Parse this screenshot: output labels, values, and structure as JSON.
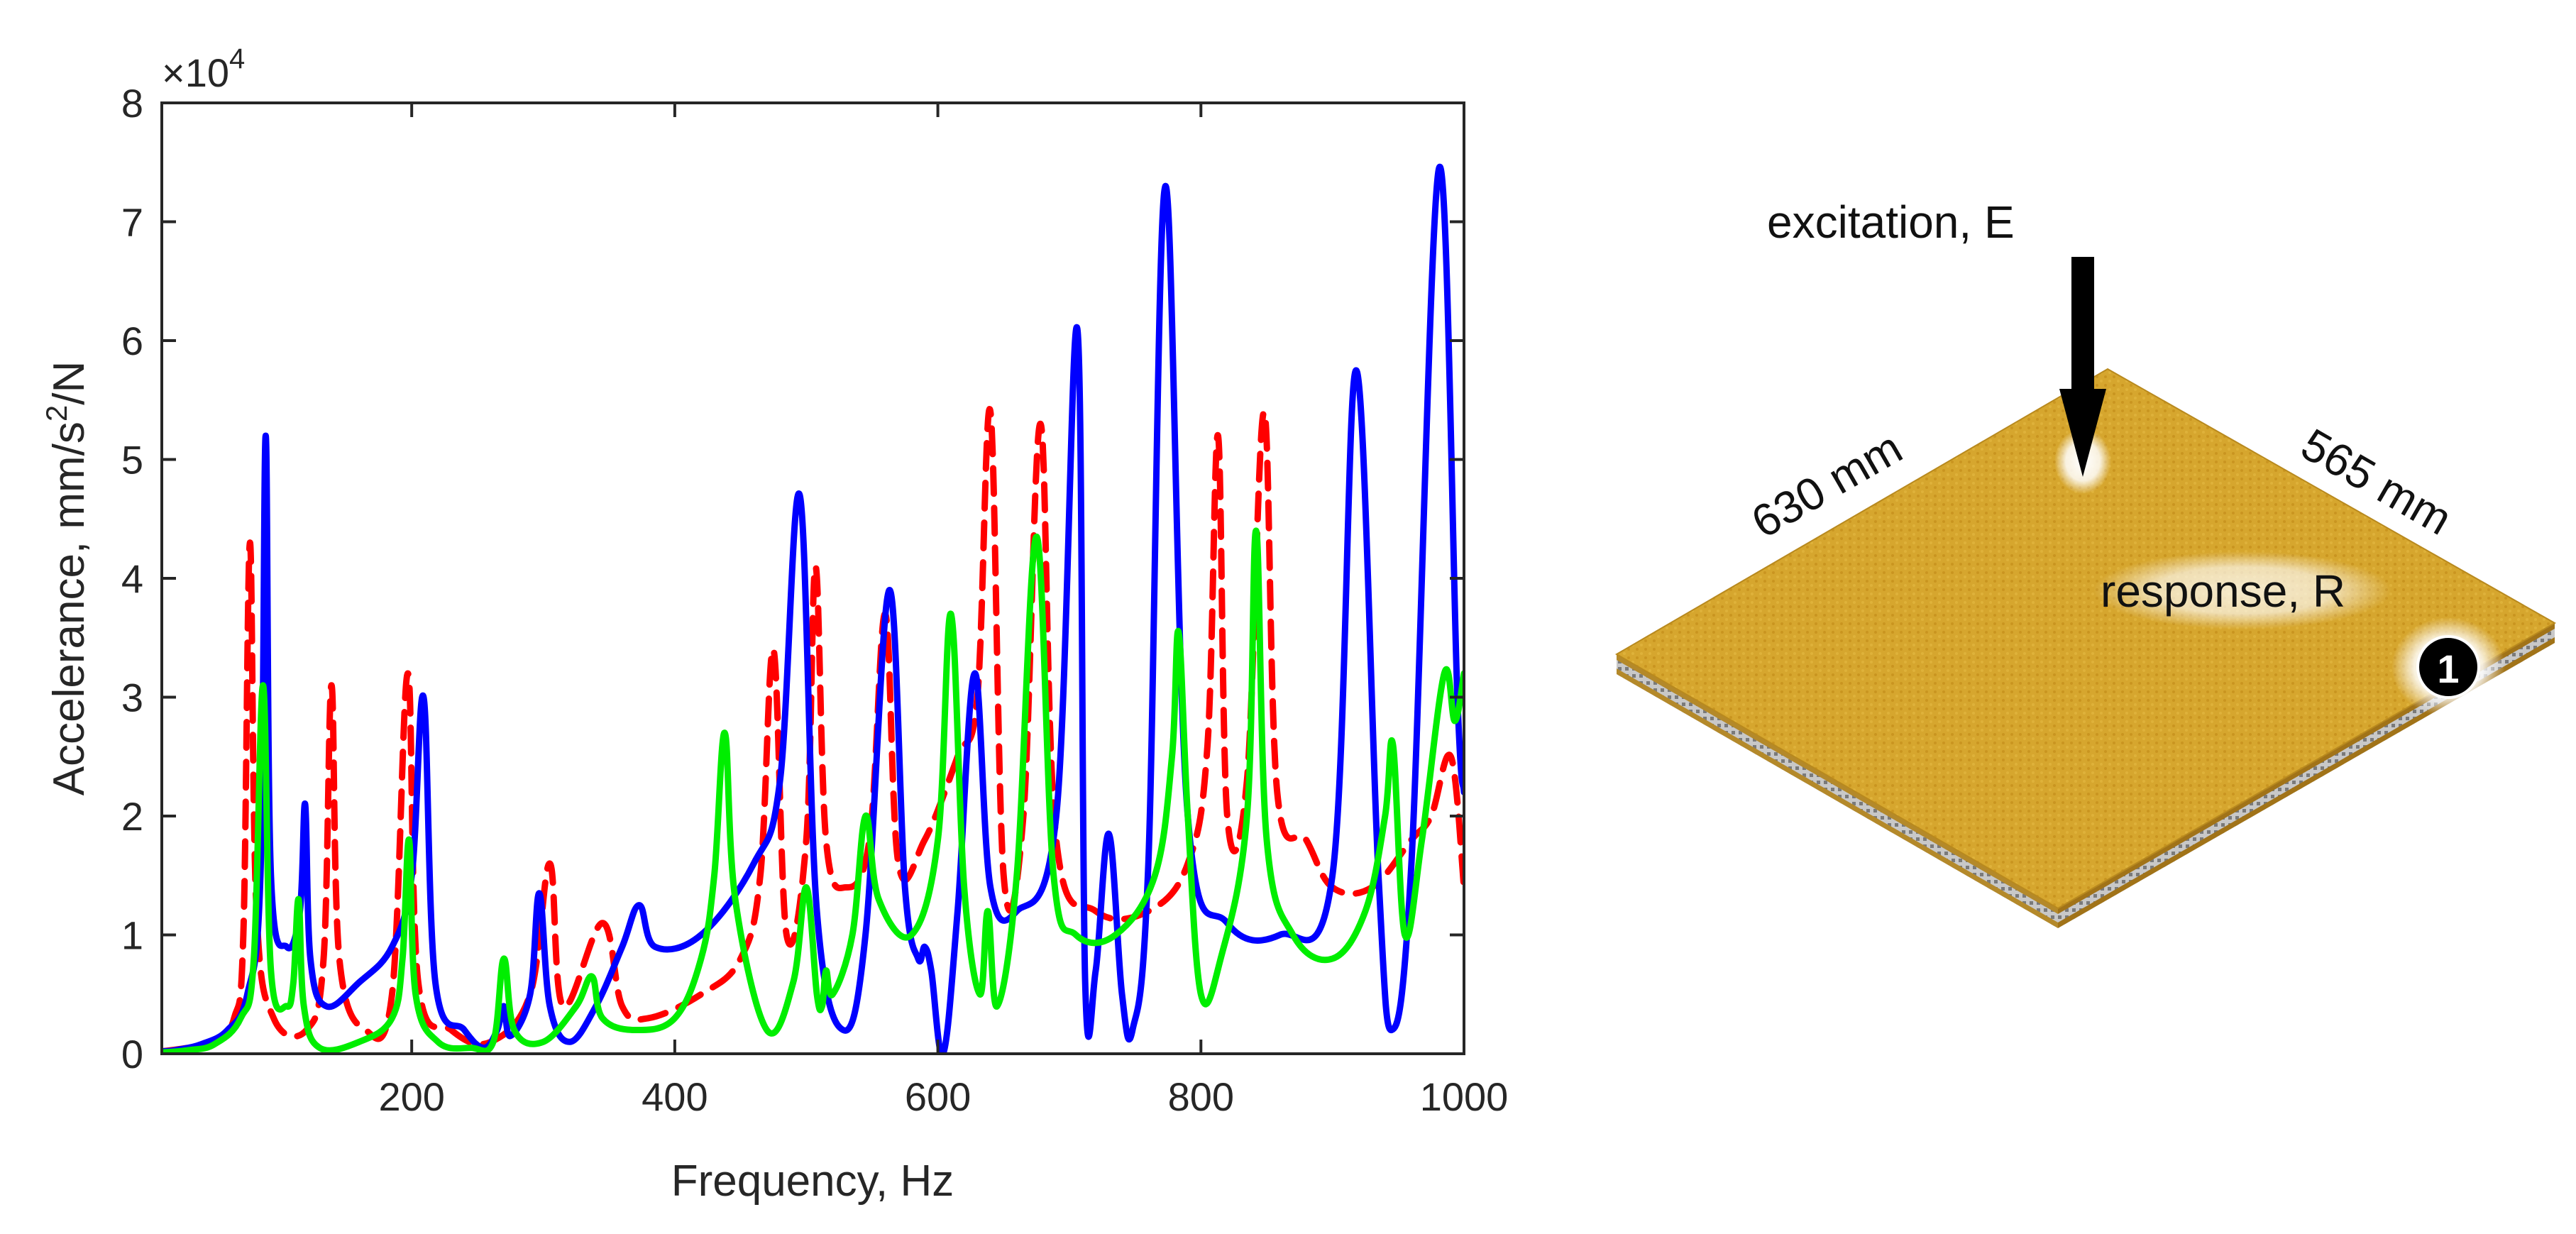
{
  "chart_data": {
    "type": "line",
    "title": "",
    "xlabel": "Frequency, Hz",
    "ylabel_main": "Accelerance, mm/s",
    "ylabel_sup": "2",
    "ylabel_tail": "/N",
    "yscale_base": "×10",
    "yscale_exp": "4",
    "xlim": [
      10,
      1000
    ],
    "ylim": [
      0,
      8
    ],
    "xticks": [
      200,
      400,
      600,
      800,
      1000
    ],
    "yticks": [
      0,
      1,
      2,
      3,
      4,
      5,
      6,
      7,
      8
    ],
    "grid": false,
    "legend": "none",
    "series": [
      {
        "name": "blue",
        "color": "#0000ff",
        "style": "solid",
        "peaks": [
          [
            89,
            5.2
          ],
          [
            119,
            2.1
          ],
          [
            209,
            3.0
          ],
          [
            270,
            0.4
          ],
          [
            297,
            1.35
          ],
          [
            373,
            1.25
          ],
          [
            495,
            4.7
          ],
          [
            563,
            3.9
          ],
          [
            590,
            0.9
          ],
          [
            628,
            3.2
          ],
          [
            706,
            6.1
          ],
          [
            730,
            1.85
          ],
          [
            773,
            7.3
          ],
          [
            918,
            5.75
          ],
          [
            981,
            7.45
          ]
        ],
        "dips": [
          [
            30,
            0.02
          ],
          [
            140,
            0.4
          ],
          [
            255,
            0.05
          ],
          [
            320,
            0.1
          ],
          [
            528,
            0.2
          ],
          [
            604,
            0.0
          ],
          [
            712,
            0.6
          ],
          [
            748,
            0.2
          ],
          [
            945,
            0.2
          ]
        ],
        "x": [
          10,
          20,
          40,
          60,
          75,
          85,
          89,
          93,
          105,
          115,
          119,
          123,
          135,
          160,
          185,
          200,
          209,
          218,
          240,
          255,
          265,
          270,
          275,
          290,
          297,
          305,
          320,
          340,
          360,
          373,
          385,
          420,
          460,
          480,
          495,
          508,
          528,
          545,
          563,
          575,
          585,
          590,
          595,
          604,
          615,
          628,
          640,
          660,
          690,
          706,
          712,
          720,
          730,
          740,
          748,
          760,
          773,
          790,
          820,
          860,
          900,
          918,
          935,
          945,
          960,
          981,
          995,
          1000
        ],
        "y": [
          0.02,
          0.03,
          0.08,
          0.2,
          0.5,
          1.5,
          5.2,
          1.5,
          0.9,
          1.2,
          2.1,
          0.8,
          0.4,
          0.6,
          0.9,
          1.5,
          3.0,
          0.6,
          0.2,
          0.05,
          0.2,
          0.4,
          0.15,
          0.5,
          1.35,
          0.4,
          0.1,
          0.4,
          0.9,
          1.25,
          0.9,
          1.0,
          1.6,
          2.3,
          4.7,
          1.2,
          0.2,
          1.0,
          3.9,
          1.4,
          0.8,
          0.9,
          0.7,
          0.0,
          1.2,
          3.2,
          1.4,
          1.2,
          2.0,
          6.1,
          0.6,
          0.7,
          1.85,
          0.5,
          0.2,
          1.6,
          7.3,
          2.0,
          1.1,
          1.0,
          1.5,
          5.75,
          1.5,
          0.2,
          1.6,
          7.45,
          3.0,
          2.2
        ]
      },
      {
        "name": "red",
        "color": "#ff0000",
        "style": "dashed",
        "peaks": [
          [
            77,
            4.3
          ],
          [
            139,
            3.1
          ],
          [
            197,
            3.2
          ],
          [
            305,
            1.6
          ],
          [
            475,
            3.4
          ],
          [
            507,
            4.1
          ],
          [
            560,
            3.7
          ],
          [
            640,
            5.4
          ],
          [
            678,
            5.3
          ],
          [
            813,
            5.2
          ],
          [
            848,
            5.4
          ],
          [
            990,
            2.5
          ]
        ],
        "x": [
          10,
          30,
          50,
          65,
          72,
          77,
          82,
          95,
          120,
          133,
          139,
          145,
          165,
          185,
          197,
          205,
          230,
          260,
          290,
          305,
          315,
          345,
          360,
          380,
          420,
          450,
          465,
          475,
          485,
          500,
          507,
          515,
          530,
          548,
          560,
          570,
          590,
          615,
          630,
          640,
          650,
          665,
          678,
          690,
          720,
          760,
          790,
          805,
          813,
          820,
          835,
          848,
          858,
          880,
          900,
          930,
          960,
          975,
          990,
          1000
        ],
        "y": [
          0.02,
          0.05,
          0.1,
          0.3,
          1.0,
          4.3,
          1.2,
          0.3,
          0.2,
          0.8,
          3.1,
          0.8,
          0.2,
          0.5,
          3.2,
          0.6,
          0.2,
          0.1,
          0.5,
          1.6,
          0.4,
          1.1,
          0.4,
          0.3,
          0.5,
          0.8,
          1.5,
          3.4,
          1.0,
          1.8,
          4.1,
          1.8,
          1.4,
          1.8,
          3.7,
          1.6,
          1.8,
          2.5,
          3.0,
          5.4,
          1.5,
          2.0,
          5.3,
          1.8,
          1.2,
          1.2,
          1.6,
          2.6,
          5.2,
          2.0,
          2.3,
          5.4,
          2.2,
          1.8,
          1.4,
          1.4,
          1.8,
          2.0,
          2.5,
          1.4
        ]
      },
      {
        "name": "green",
        "color": "#00ee00",
        "style": "solid",
        "peaks": [
          [
            87,
            3.1
          ],
          [
            114,
            1.3
          ],
          [
            198,
            1.8
          ],
          [
            270,
            0.8
          ],
          [
            337,
            0.65
          ],
          [
            438,
            2.7
          ],
          [
            500,
            1.4
          ],
          [
            515,
            0.7
          ],
          [
            545,
            2.0
          ],
          [
            610,
            3.7
          ],
          [
            638,
            1.2
          ],
          [
            675,
            4.35
          ],
          [
            783,
            3.55
          ],
          [
            842,
            4.4
          ],
          [
            946,
            2.6
          ],
          [
            985,
            3.2
          ],
          [
            1000,
            3.2
          ]
        ],
        "x": [
          10,
          30,
          50,
          70,
          80,
          87,
          93,
          105,
          110,
          114,
          118,
          130,
          160,
          185,
          193,
          198,
          203,
          220,
          245,
          262,
          270,
          278,
          300,
          325,
          337,
          345,
          370,
          400,
          420,
          430,
          438,
          446,
          470,
          490,
          500,
          508,
          512,
          515,
          520,
          535,
          545,
          555,
          580,
          600,
          610,
          620,
          632,
          638,
          645,
          660,
          675,
          688,
          705,
          735,
          765,
          778,
          783,
          790,
          800,
          815,
          835,
          842,
          850,
          870,
          900,
          925,
          940,
          946,
          955,
          968,
          985,
          993,
          1000
        ],
        "y": [
          0.01,
          0.03,
          0.08,
          0.3,
          0.8,
          3.1,
          0.7,
          0.4,
          0.6,
          1.3,
          0.4,
          0.05,
          0.1,
          0.3,
          0.8,
          1.8,
          0.5,
          0.1,
          0.05,
          0.1,
          0.8,
          0.2,
          0.1,
          0.4,
          0.65,
          0.3,
          0.2,
          0.3,
          0.8,
          1.5,
          2.7,
          1.3,
          0.2,
          0.6,
          1.4,
          0.5,
          0.4,
          0.7,
          0.5,
          1.0,
          2.0,
          1.3,
          1.0,
          1.8,
          3.7,
          1.4,
          0.5,
          1.2,
          0.4,
          1.5,
          4.35,
          1.5,
          1.0,
          1.0,
          1.5,
          2.5,
          3.55,
          2.0,
          0.5,
          0.8,
          2.0,
          4.4,
          1.8,
          1.0,
          0.8,
          1.2,
          2.0,
          2.6,
          1.0,
          1.8,
          3.2,
          2.8,
          3.2
        ]
      }
    ]
  },
  "schematic": {
    "excitation_label": "excitation, E",
    "response_label": "response, R",
    "width_label": "630 mm",
    "depth_label": "565 mm",
    "marker_label": "1",
    "plate_color": "#d4a42a",
    "plate_dark": "#a0761a",
    "edge_color": "#bdbdbd",
    "arrow_color": "#000000"
  }
}
